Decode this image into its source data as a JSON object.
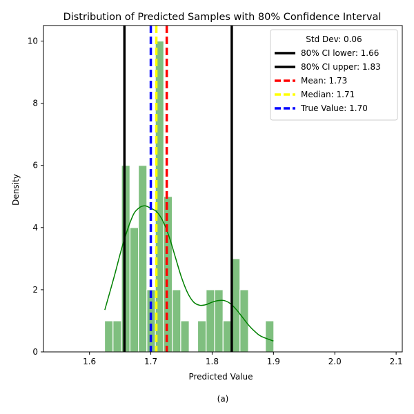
{
  "chart_data": {
    "type": "bar",
    "title": "Distribution of Predicted Samples with 80% Confidence Interval",
    "xlabel": "Predicted Value",
    "ylabel": "Density",
    "caption": "(a)",
    "xlim": [
      1.525,
      2.11
    ],
    "ylim": [
      0,
      10.5
    ],
    "xticks": [
      1.6,
      1.7,
      1.8,
      1.9,
      2.0,
      2.1
    ],
    "xtick_labels": [
      "1.6",
      "1.7",
      "1.8",
      "1.9",
      "2.0",
      "2.1"
    ],
    "yticks": [
      0,
      2,
      4,
      6,
      8,
      10
    ],
    "ytick_labels": [
      "0",
      "2",
      "4",
      "6",
      "8",
      "10"
    ],
    "grid": false,
    "legend_position": "top-right",
    "histogram": {
      "color": "#7fbf7f",
      "edge_color": "#ffffff",
      "bin_width": 0.0138,
      "bins": [
        {
          "x": 1.6246,
          "value": 1
        },
        {
          "x": 1.6384,
          "value": 1
        },
        {
          "x": 1.6522,
          "value": 6
        },
        {
          "x": 1.666,
          "value": 4
        },
        {
          "x": 1.6798,
          "value": 6
        },
        {
          "x": 1.6936,
          "value": 2
        },
        {
          "x": 1.7074,
          "value": 10
        },
        {
          "x": 1.7212,
          "value": 5
        },
        {
          "x": 1.735,
          "value": 2
        },
        {
          "x": 1.7488,
          "value": 1
        },
        {
          "x": 1.7764,
          "value": 1
        },
        {
          "x": 1.7902,
          "value": 2
        },
        {
          "x": 1.804,
          "value": 2
        },
        {
          "x": 1.8178,
          "value": 1
        },
        {
          "x": 1.8316,
          "value": 3
        },
        {
          "x": 1.8454,
          "value": 2
        },
        {
          "x": 1.8868,
          "value": 1
        }
      ]
    },
    "kde": {
      "color": "#008000",
      "x": [
        1.625,
        1.64,
        1.655,
        1.67,
        1.68,
        1.69,
        1.7,
        1.71,
        1.72,
        1.73,
        1.74,
        1.75,
        1.76,
        1.77,
        1.78,
        1.79,
        1.8,
        1.81,
        1.82,
        1.83,
        1.84,
        1.85,
        1.86,
        1.87,
        1.88,
        1.9
      ],
      "y": [
        1.35,
        2.4,
        3.5,
        4.35,
        4.62,
        4.7,
        4.62,
        4.5,
        4.2,
        3.7,
        3.05,
        2.4,
        1.9,
        1.6,
        1.5,
        1.52,
        1.6,
        1.65,
        1.65,
        1.55,
        1.35,
        1.1,
        0.85,
        0.65,
        0.5,
        0.35
      ]
    },
    "vlines": [
      {
        "key": "ci_lower",
        "x": 1.657,
        "color": "#000000",
        "dash": "solid",
        "label": "80% CI lower: 1.66"
      },
      {
        "key": "ci_upper",
        "x": 1.832,
        "color": "#000000",
        "dash": "solid",
        "label": "80% CI upper: 1.83"
      },
      {
        "key": "mean",
        "x": 1.726,
        "color": "#ff0000",
        "dash": "dashed",
        "label": "Mean: 1.73"
      },
      {
        "key": "median",
        "x": 1.709,
        "color": "#ffff00",
        "dash": "dashed",
        "label": "Median: 1.71"
      },
      {
        "key": "true_value",
        "x": 1.7,
        "color": "#0000ff",
        "dash": "dashed",
        "label": "True Value: 1.70"
      }
    ],
    "legend_title": "Std Dev: 0.06"
  }
}
